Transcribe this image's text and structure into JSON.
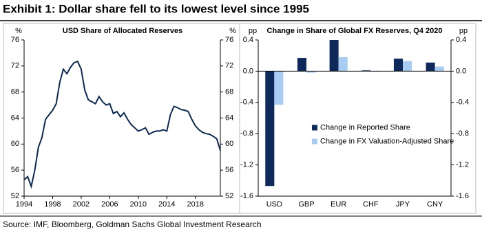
{
  "title": "Exhibit 1: Dollar share fell to its lowest level since 1995",
  "source": "Source: IMF, Bloomberg, Goldman Sachs Global Investment Research",
  "chart_data": [
    {
      "type": "line",
      "title": "USD Share of Allocated Reserves",
      "y_label": "%",
      "y2_label": "%",
      "x": [
        1994,
        1994.5,
        1995,
        1995.5,
        1996,
        1996.5,
        1997,
        1997.5,
        1998,
        1998.5,
        1999,
        1999.5,
        2000,
        2000.5,
        2001,
        2001.5,
        2002,
        2002.5,
        2003,
        2003.5,
        2004,
        2004.5,
        2005,
        2005.5,
        2006,
        2006.5,
        2007,
        2007.5,
        2008,
        2008.5,
        2009,
        2009.5,
        2010,
        2010.5,
        2011,
        2011.5,
        2012,
        2012.5,
        2013,
        2013.5,
        2014,
        2014.5,
        2015,
        2015.5,
        2016,
        2016.5,
        2017,
        2017.5,
        2018,
        2018.5,
        2019,
        2019.5,
        2020,
        2020.5,
        2021,
        2021.5
      ],
      "values": [
        54.5,
        55,
        53.5,
        56,
        59.5,
        61,
        63.8,
        64.5,
        65.2,
        66.2,
        69.5,
        71.5,
        70.8,
        71.8,
        72.5,
        72.7,
        71.5,
        68.3,
        66.8,
        66.5,
        66.2,
        67.3,
        66.5,
        66,
        66.2,
        64.7,
        65,
        64.2,
        64.8,
        63.8,
        63,
        62.5,
        62,
        62.2,
        62.5,
        61.5,
        61.8,
        62,
        62,
        62.2,
        62,
        64.5,
        65.8,
        65.6,
        65.3,
        65.2,
        65,
        63.8,
        62.8,
        62.2,
        61.8,
        61.6,
        61.5,
        61.2,
        60.8,
        59
      ],
      "color": "#0b2850",
      "xlim": [
        1994,
        2021.5
      ],
      "xticks": [
        1994,
        1998,
        2002,
        2006,
        2010,
        2014,
        2018
      ],
      "ylim": [
        52,
        76
      ],
      "yticks": [
        52,
        56,
        60,
        64,
        68,
        72,
        76
      ],
      "y2lim": [
        52,
        76
      ],
      "y2ticks": [
        52,
        56,
        60,
        64,
        68,
        72,
        76
      ]
    },
    {
      "type": "bar",
      "title": "Change in Share of Global FX Reserves, Q4 2020",
      "y_label": "pp",
      "y2_label": "pp",
      "categories": [
        "USD",
        "GBP",
        "EUR",
        "CHF",
        "JPY",
        "CNY"
      ],
      "series": [
        {
          "name": "Change in Reported Share",
          "color": "#0d2a5a",
          "values": [
            -1.47,
            0.17,
            0.4,
            0.01,
            0.16,
            0.11
          ]
        },
        {
          "name": "Change in FX Valuation-Adjusted Share",
          "color": "#a9cdf0",
          "values": [
            -0.43,
            -0.02,
            0.18,
            0,
            0.13,
            0.06
          ]
        }
      ],
      "ylim": [
        -1.6,
        0.4
      ],
      "yticks": [
        0.4,
        {
          "value": 0,
          "label": "0.0"
        },
        -0.4,
        -0.8,
        -1.2,
        -1.6
      ],
      "y2lim": [
        -1.6,
        0.4
      ],
      "y2ticks": [
        0.4,
        {
          "value": 0,
          "label": "0.0"
        },
        -0.4,
        -0.8,
        -1.2,
        -1.6
      ],
      "legend": "center-right"
    }
  ]
}
